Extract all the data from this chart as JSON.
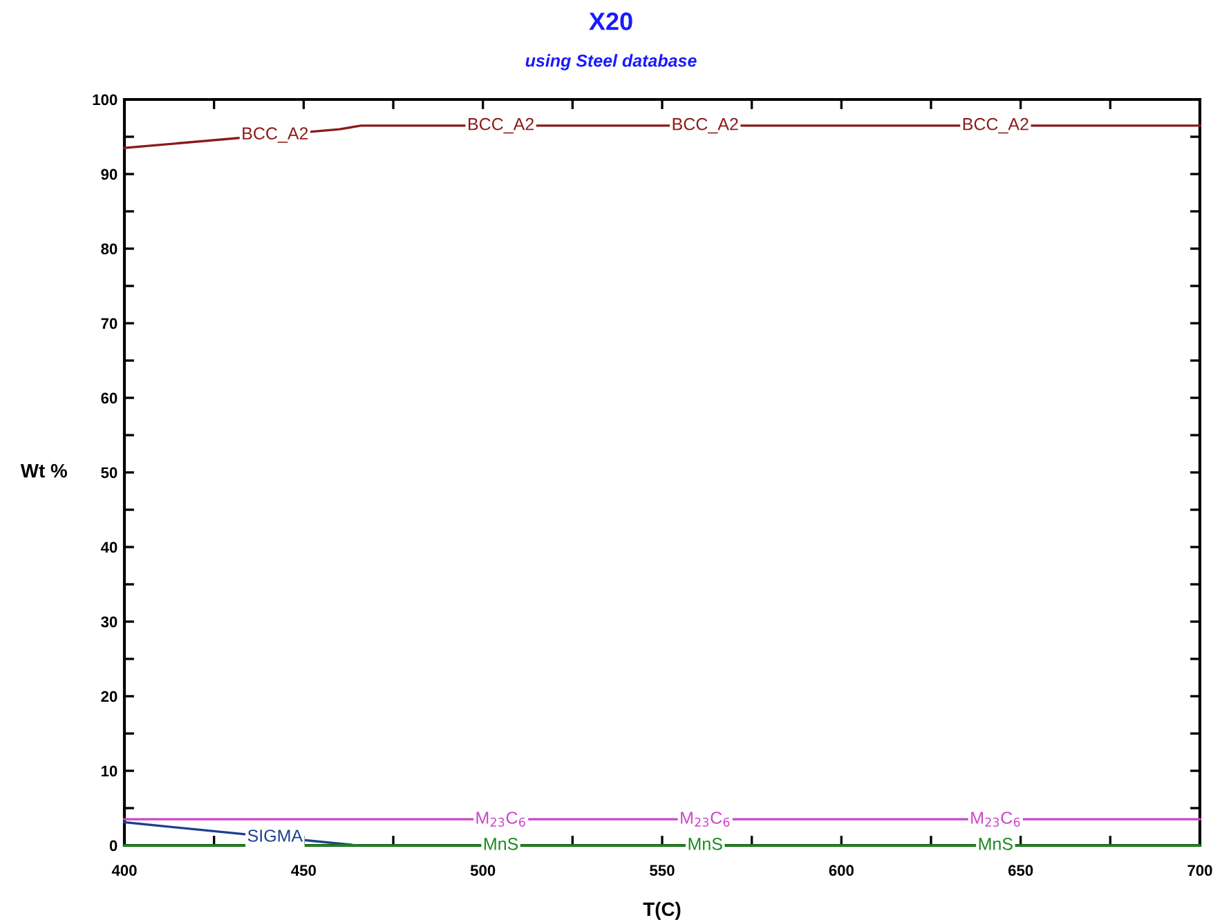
{
  "chart_data": {
    "type": "line",
    "title": "X20",
    "subtitle": "using Steel database",
    "xlabel": "T(C)",
    "ylabel": "Wt %",
    "xlim": [
      400,
      700
    ],
    "ylim": [
      0,
      100
    ],
    "xticks": [
      400,
      {
        "value": 425,
        "label": null
      },
      450,
      {
        "value": 475,
        "label": null
      },
      500,
      {
        "value": 525,
        "label": null
      },
      550,
      {
        "value": 575,
        "label": null
      },
      600,
      {
        "value": 625,
        "label": null
      },
      650,
      {
        "value": 675,
        "label": null
      },
      700
    ],
    "yticks": [
      0,
      {
        "value": 5,
        "label": null
      },
      10,
      {
        "value": 15,
        "label": null
      },
      20,
      {
        "value": 25,
        "label": null
      },
      30,
      {
        "value": 35,
        "label": null
      },
      40,
      {
        "value": 45,
        "label": null
      },
      50,
      {
        "value": 55,
        "label": null
      },
      60,
      {
        "value": 65,
        "label": null
      },
      70,
      {
        "value": 75,
        "label": null
      },
      80,
      {
        "value": 85,
        "label": null
      },
      90,
      {
        "value": 95,
        "label": null
      },
      100
    ],
    "grid": false,
    "legend": false,
    "marker": "none",
    "line_style": "solid",
    "series": [
      {
        "name": "BCC_A2",
        "color": "#8b1a1a",
        "x": [
          400,
          460,
          466,
          700
        ],
        "values": [
          93.5,
          96.0,
          96.5,
          96.5
        ]
      },
      {
        "name": "M$_{23}$C$_{6}$",
        "color": "#cc44cc",
        "x": [
          400,
          700
        ],
        "values": [
          3.5,
          3.5
        ]
      },
      {
        "name": "SIGMA",
        "color": "#1f3f8f",
        "x": [
          400,
          465
        ],
        "values": [
          3.1,
          0
        ]
      },
      {
        "name": "MnS",
        "color": "#1a8a1a",
        "x": [
          400,
          700
        ],
        "values": [
          0,
          0
        ]
      }
    ]
  }
}
